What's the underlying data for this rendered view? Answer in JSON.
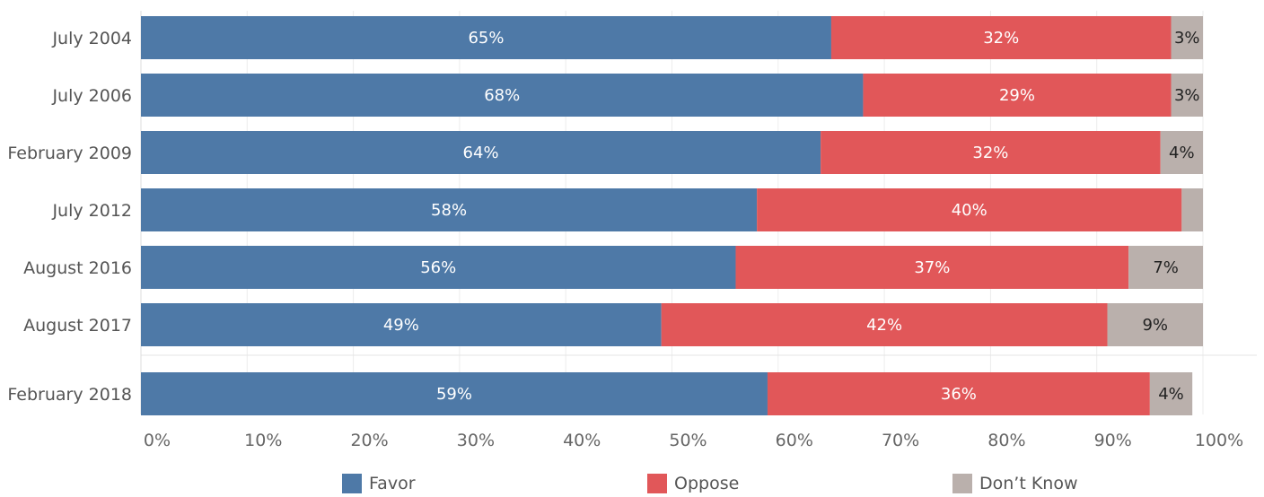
{
  "chart_data": {
    "type": "bar",
    "orientation": "horizontal",
    "stacked": true,
    "categories": [
      "July 2004",
      "July 2006",
      "February 2009",
      "July 2012",
      "August 2016",
      "August 2017",
      "February 2018"
    ],
    "series": [
      {
        "name": "Favor",
        "color": "#4e79a7",
        "values": [
          65,
          68,
          64,
          58,
          56,
          49,
          59
        ],
        "labels": [
          "65%",
          "68%",
          "64%",
          "58%",
          "56%",
          "49%",
          "59%"
        ],
        "label_color": "#ffffff"
      },
      {
        "name": "Oppose",
        "color": "#e15759",
        "values": [
          32,
          29,
          32,
          40,
          37,
          42,
          36
        ],
        "labels": [
          "32%",
          "29%",
          "32%",
          "40%",
          "37%",
          "42%",
          "36%"
        ],
        "label_color": "#ffffff"
      },
      {
        "name": "Don’t Know",
        "color": "#bab0ac",
        "values": [
          3,
          3,
          4,
          2,
          7,
          9,
          4
        ],
        "labels": [
          "3%",
          "3%",
          "4%",
          "",
          "7%",
          "9%",
          "4%"
        ],
        "label_color": "#222222"
      }
    ],
    "xlim": [
      0,
      100
    ],
    "x_ticks": [
      "0%",
      "10%",
      "20%",
      "30%",
      "40%",
      "50%",
      "60%",
      "70%",
      "80%",
      "90%",
      "100%"
    ],
    "grid": true,
    "legend_position": "bottom"
  }
}
